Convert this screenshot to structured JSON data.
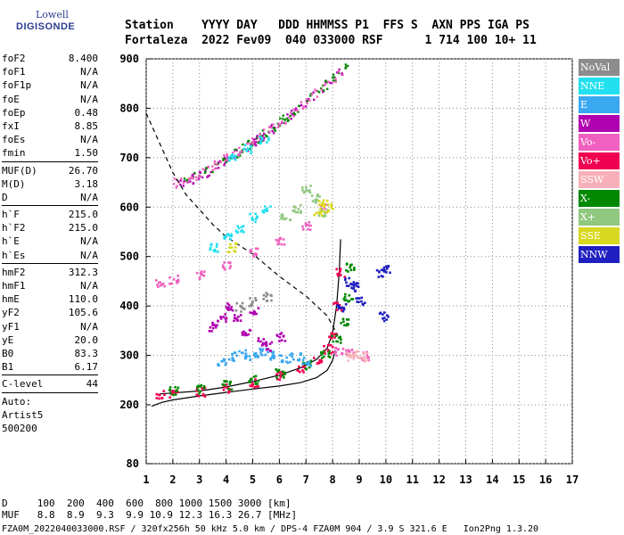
{
  "logo": {
    "line1": "Lowell",
    "line2": "DIGISONDE"
  },
  "header": {
    "line1": "Station    YYYY DAY   DDD HHMMSS P1  FFS S  AXN PPS IGA PS",
    "line2": "Fortaleza  2022 Fev09  040 033000 RSF      1 714 100 10+ 11"
  },
  "params": [
    [
      {
        "k": "foF2",
        "v": "8.400"
      },
      {
        "k": "foF1",
        "v": "N/A"
      },
      {
        "k": "foF1p",
        "v": "N/A"
      },
      {
        "k": "foE",
        "v": "N/A"
      },
      {
        "k": "foEp",
        "v": "0.48"
      },
      {
        "k": "fxI",
        "v": "8.85"
      },
      {
        "k": "foEs",
        "v": "N/A"
      },
      {
        "k": "fmin",
        "v": "1.50"
      }
    ],
    [
      {
        "k": "MUF(D)",
        "v": "26.70"
      },
      {
        "k": "M(D)",
        "v": "3.18"
      },
      {
        "k": "D",
        "v": "N/A"
      }
    ],
    [
      {
        "k": "h`F",
        "v": "215.0"
      },
      {
        "k": "h`F2",
        "v": "215.0"
      },
      {
        "k": "h`E",
        "v": "N/A"
      },
      {
        "k": "h`Es",
        "v": "N/A"
      }
    ],
    [
      {
        "k": "hmF2",
        "v": "312.3"
      },
      {
        "k": "hmF1",
        "v": "N/A"
      },
      {
        "k": "hmE",
        "v": "110.0"
      },
      {
        "k": "yF2",
        "v": "105.6"
      },
      {
        "k": "yF1",
        "v": "N/A"
      },
      {
        "k": "yE",
        "v": "20.0"
      },
      {
        "k": "B0",
        "v": "83.3"
      },
      {
        "k": "B1",
        "v": "6.17"
      }
    ],
    [
      {
        "k": "C-level",
        "v": "44"
      }
    ]
  ],
  "auto": {
    "l1": "Auto:",
    "l2": "Artist5",
    "l3": "500200"
  },
  "legend": [
    {
      "label": "NoVal",
      "color": "#8c8c8c"
    },
    {
      "label": "NNE",
      "color": "#22e0f0"
    },
    {
      "label": "E",
      "color": "#3aa8f0"
    },
    {
      "label": "W",
      "color": "#b000b0"
    },
    {
      "label": "Vo-",
      "color": "#f060c0"
    },
    {
      "label": "Vo+",
      "color": "#f00050"
    },
    {
      "label": "SSW",
      "color": "#f8b0b8"
    },
    {
      "label": "X-",
      "color": "#008800"
    },
    {
      "label": "X+",
      "color": "#90c880"
    },
    {
      "label": "SSE",
      "color": "#d8d820"
    },
    {
      "label": "NNW",
      "color": "#2020c0"
    }
  ],
  "footer": {
    "line1": "D     100  200  400  600  800 1000 1500 3000 [km]",
    "line2": "MUF   8.8  8.9  9.3  9.9 10.9 12.3 16.3 26.7 [MHz]",
    "line3": "FZA0M_2022040033000.RSF / 320fx256h 50 kHz 5.0 km / DPS-4 FZA0M 904 / 3.9 S 321.6 E   Ion2Png 1.3.20"
  },
  "chart_data": {
    "type": "scatter",
    "x_ticks": [
      1,
      2,
      3,
      4,
      5,
      6,
      7,
      8,
      9,
      10,
      11,
      12,
      13,
      14,
      15,
      16,
      17
    ],
    "y_ticks": [
      80,
      200,
      300,
      400,
      500,
      600,
      700,
      800,
      900
    ],
    "xlim": [
      1,
      17
    ],
    "ylim": [
      80,
      900
    ],
    "grid": true,
    "legend_position": "right",
    "series": [
      {
        "label": "profile",
        "color": "#000000",
        "style": "solid",
        "points": [
          [
            1.2,
            197
          ],
          [
            1.6,
            205
          ],
          [
            2,
            210
          ],
          [
            3,
            218
          ],
          [
            4,
            225
          ],
          [
            5,
            232
          ],
          [
            6,
            238
          ],
          [
            6.8,
            245
          ],
          [
            7.4,
            255
          ],
          [
            7.8,
            270
          ],
          [
            8.0,
            290
          ],
          [
            8.1,
            310
          ]
        ]
      },
      {
        "label": "trace",
        "color": "#000000",
        "style": "solid",
        "points": [
          [
            1.5,
            222
          ],
          [
            2,
            224
          ],
          [
            3,
            228
          ],
          [
            4,
            236
          ],
          [
            5,
            247
          ],
          [
            6,
            260
          ],
          [
            6.8,
            275
          ],
          [
            7.4,
            292
          ],
          [
            7.8,
            315
          ],
          [
            8.0,
            345
          ],
          [
            8.15,
            400
          ],
          [
            8.25,
            470
          ],
          [
            8.3,
            535
          ]
        ]
      },
      {
        "label": "MUF",
        "color": "#000000",
        "style": "dashed",
        "points": [
          [
            1,
            790
          ],
          [
            1.5,
            730
          ],
          [
            2,
            670
          ],
          [
            2.5,
            625
          ],
          [
            3,
            595
          ],
          [
            3.5,
            565
          ],
          [
            4,
            540
          ],
          [
            5,
            505
          ],
          [
            6,
            460
          ],
          [
            7,
            420
          ],
          [
            7.8,
            380
          ],
          [
            8.2,
            340
          ]
        ]
      },
      {
        "label": "Vo+",
        "color": "#f00050",
        "style": "echo",
        "points": [
          [
            1.5,
            222
          ],
          [
            2,
            224
          ],
          [
            3,
            228
          ],
          [
            4,
            236
          ],
          [
            5,
            247
          ],
          [
            6,
            260
          ],
          [
            6.8,
            275
          ],
          [
            7.4,
            292
          ],
          [
            7.8,
            315
          ],
          [
            8.0,
            345
          ],
          [
            8.15,
            400
          ],
          [
            8.25,
            470
          ]
        ]
      },
      {
        "label": "X-",
        "color": "#008800",
        "style": "echo",
        "points": [
          [
            2,
            230
          ],
          [
            3,
            234
          ],
          [
            4,
            242
          ],
          [
            5,
            253
          ],
          [
            6,
            266
          ],
          [
            7,
            283
          ],
          [
            7.7,
            305
          ],
          [
            8.1,
            335
          ],
          [
            8.4,
            370
          ],
          [
            8.55,
            420
          ],
          [
            8.6,
            480
          ]
        ]
      },
      {
        "label": "E",
        "color": "#3aa8f0",
        "style": "echo",
        "points": [
          [
            3.8,
            290
          ],
          [
            4.2,
            300
          ],
          [
            4.6,
            305
          ],
          [
            5.0,
            298
          ],
          [
            5.4,
            310
          ],
          [
            5.8,
            302
          ],
          [
            6.2,
            295
          ],
          [
            6.6,
            300
          ],
          [
            7.0,
            290
          ]
        ]
      },
      {
        "label": "W",
        "color": "#b000b0",
        "style": "echo",
        "points": [
          [
            3.5,
            360
          ],
          [
            3.8,
            380
          ],
          [
            4.1,
            400
          ],
          [
            4.4,
            375
          ],
          [
            4.7,
            350
          ],
          [
            5.0,
            390
          ],
          [
            5.3,
            330
          ],
          [
            5.6,
            320
          ],
          [
            6,
            340
          ]
        ]
      },
      {
        "label": "Vo-",
        "color": "#f060c0",
        "style": "echo",
        "points": [
          [
            1.5,
            450
          ],
          [
            2,
            455
          ],
          [
            3,
            465
          ],
          [
            4,
            485
          ],
          [
            5,
            510
          ],
          [
            6,
            535
          ],
          [
            7,
            565
          ],
          [
            7.6,
            600
          ],
          [
            8.2,
            310
          ],
          [
            8.6,
            305
          ],
          [
            9.2,
            300
          ]
        ]
      },
      {
        "label": "NNE",
        "color": "#22e0f0",
        "style": "echo",
        "points": [
          [
            3.5,
            520
          ],
          [
            4,
            540
          ],
          [
            4.5,
            560
          ],
          [
            5,
            580
          ],
          [
            5.5,
            600
          ],
          [
            4.2,
            700
          ],
          [
            4.8,
            720
          ],
          [
            5.4,
            740
          ]
        ]
      },
      {
        "label": "X+",
        "color": "#90c880",
        "style": "echo",
        "points": [
          [
            6.2,
            580
          ],
          [
            6.6,
            600
          ],
          [
            7,
            640
          ],
          [
            7.3,
            620
          ],
          [
            7.6,
            590
          ]
        ]
      },
      {
        "label": "SSE",
        "color": "#d8d820",
        "style": "echo",
        "points": [
          [
            7.4,
            590
          ],
          [
            7.6,
            610
          ],
          [
            7.8,
            600
          ],
          [
            4.2,
            520
          ]
        ]
      },
      {
        "label": "NNW",
        "color": "#2020c0",
        "style": "echo",
        "points": [
          [
            8.6,
            450
          ],
          [
            8.8,
            440
          ],
          [
            9.8,
            470
          ],
          [
            10,
            475
          ],
          [
            9.9,
            380
          ],
          [
            9.0,
            410
          ],
          [
            8.3,
            400
          ]
        ]
      },
      {
        "label": "SSW",
        "color": "#f8b0b8",
        "style": "echo",
        "points": [
          [
            8.6,
            300
          ],
          [
            8.9,
            302
          ],
          [
            9.1,
            298
          ]
        ]
      },
      {
        "label": "NoVal",
        "color": "#8c8c8c",
        "style": "echo",
        "points": [
          [
            4.5,
            400
          ],
          [
            5,
            410
          ],
          [
            5.5,
            420
          ]
        ]
      }
    ],
    "echo_bands": [
      {
        "color": "#b000b0",
        "x": [
          2.2,
          8.6
        ],
        "y": [
          650,
          890
        ],
        "curve": "upper"
      },
      {
        "color": "#008800",
        "x": [
          2.4,
          8.7
        ],
        "y": [
          660,
          895
        ],
        "curve": "upper"
      },
      {
        "color": "#f060c0",
        "x": [
          2.0,
          8.4
        ],
        "y": [
          650,
          880
        ],
        "curve": "upper"
      }
    ]
  }
}
